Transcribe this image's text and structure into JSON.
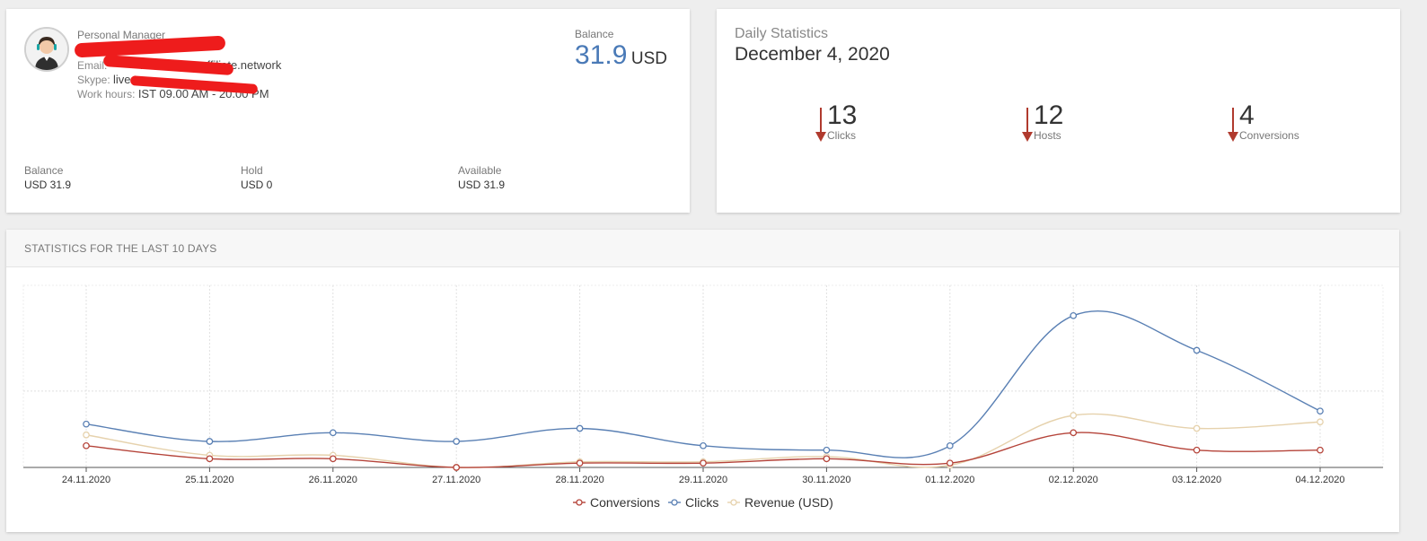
{
  "manager": {
    "title": "Personal Manager",
    "email_label": "Email:",
    "email_value": "mambalayaaffiliate.network",
    "skype_label": "Skype:",
    "skype_value": "live.",
    "hours_label": "Work hours:",
    "hours_value": "IST 09.00 AM - 20.00 PM"
  },
  "balance_header": {
    "label": "Balance",
    "amount": "31.9",
    "currency": "USD"
  },
  "balances": [
    {
      "label": "Balance",
      "value": "USD 31.9"
    },
    {
      "label": "Hold",
      "value": "USD 0"
    },
    {
      "label": "Available",
      "value": "USD 31.9"
    }
  ],
  "daily": {
    "title": "Daily Statistics",
    "date": "December 4, 2020",
    "metrics": [
      {
        "value": "13",
        "label": "Clicks"
      },
      {
        "value": "12",
        "label": "Hosts"
      },
      {
        "value": "4",
        "label": "Conversions"
      }
    ]
  },
  "stats_title": "STATISTICS FOR THE LAST 10 DAYS",
  "colors": {
    "conversions": "#b5443a",
    "clicks": "#5a80b4",
    "revenue": "#e6d2ad",
    "accent": "#4a7ab7",
    "arrow": "#b03a2e"
  },
  "chart_data": {
    "type": "line",
    "x": [
      "24.11.2020",
      "25.11.2020",
      "26.11.2020",
      "27.11.2020",
      "28.11.2020",
      "29.11.2020",
      "30.11.2020",
      "01.12.2020",
      "02.12.2020",
      "03.12.2020",
      "04.12.2020"
    ],
    "series": [
      {
        "name": "Conversions",
        "values": [
          5,
          2,
          2,
          0,
          1,
          1,
          2,
          1,
          8,
          4,
          4
        ]
      },
      {
        "name": "Clicks",
        "values": [
          10,
          6,
          8,
          6,
          9,
          5,
          4,
          5,
          35,
          27,
          13
        ]
      },
      {
        "name": "Revenue (USD)",
        "values": [
          7.5,
          2.8,
          2.8,
          0,
          1.3,
          1.3,
          2.5,
          0.5,
          12,
          9,
          10.5
        ]
      }
    ],
    "ylim": [
      0,
      42
    ],
    "grid": true,
    "legend": "bottom",
    "title": "",
    "xlabel": "",
    "ylabel": ""
  }
}
